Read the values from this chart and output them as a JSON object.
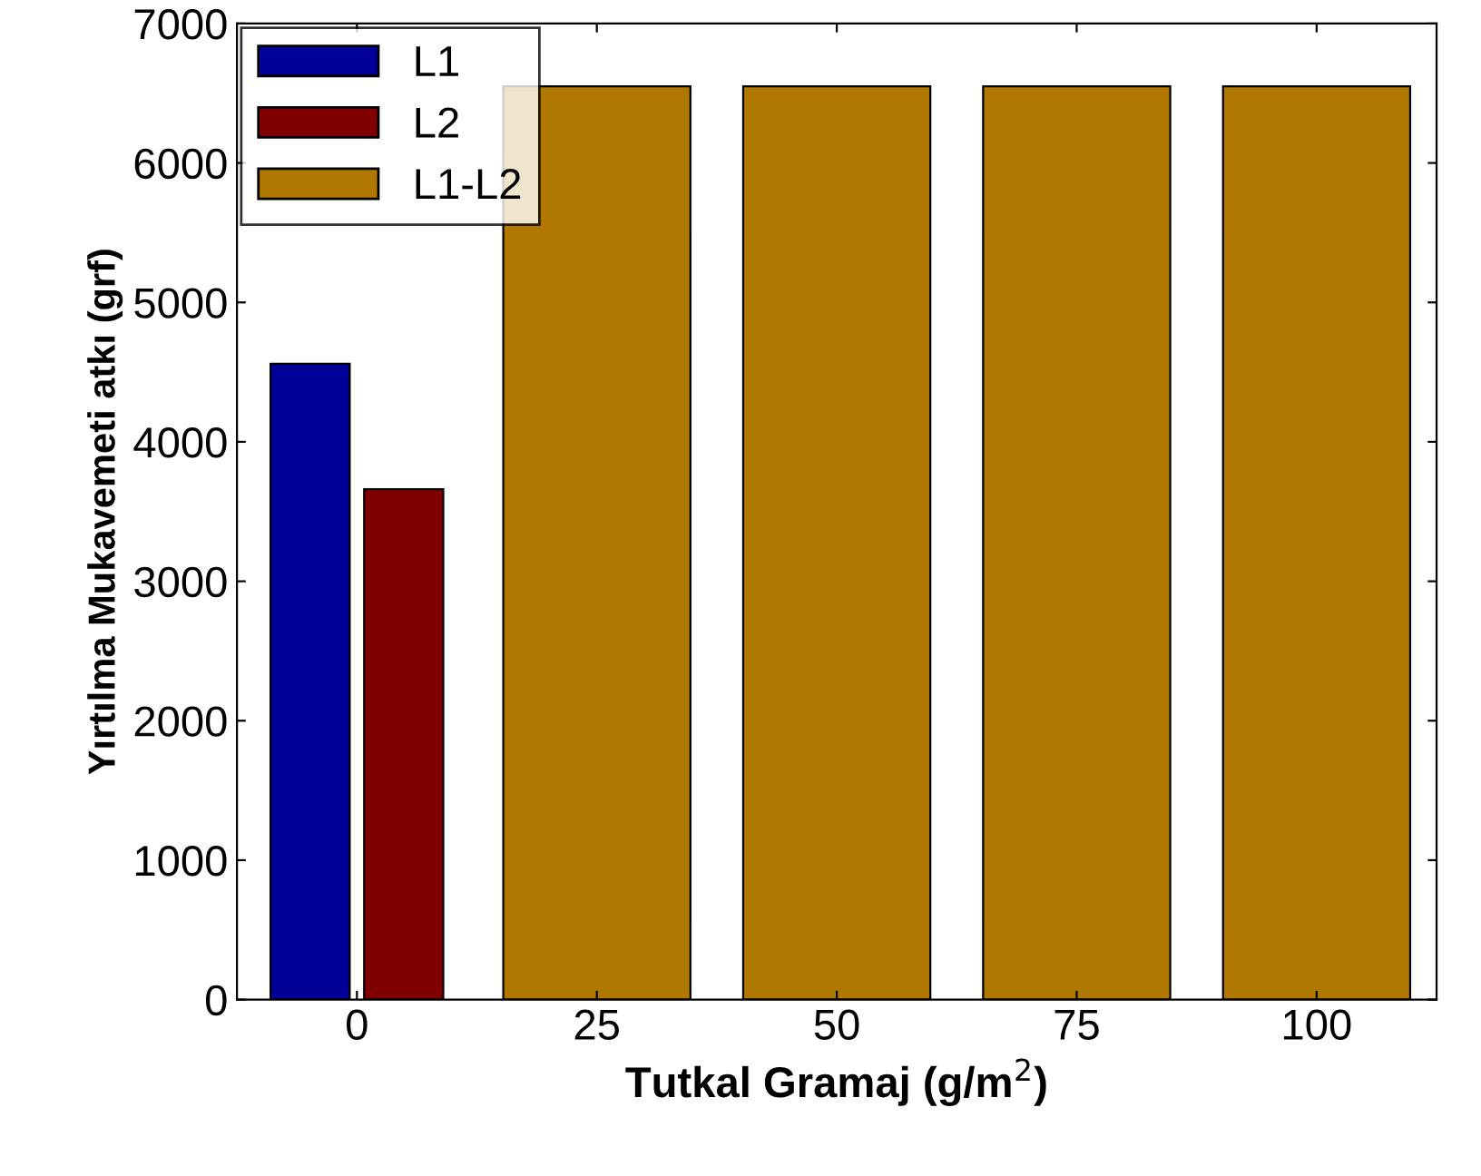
{
  "chart_data": {
    "type": "bar",
    "xlabel": "Tutkal Gramaj (g/m$^{2}$)",
    "ylabel": "Yırtılma Mukavemeti atkı (grf)",
    "categories": [
      "0",
      "25",
      "50",
      "75",
      "100"
    ],
    "series": [
      {
        "name": "L1",
        "color": "#000099",
        "values": [
          4560,
          null,
          null,
          null,
          null
        ]
      },
      {
        "name": "L2",
        "color": "#800000",
        "values": [
          3660,
          null,
          null,
          null,
          null
        ]
      },
      {
        "name": "L1-L2",
        "color": "#b07800",
        "values": [
          null,
          6550,
          6550,
          6550,
          6550
        ]
      }
    ],
    "ylim": [
      0,
      7000
    ],
    "yticks": [
      0,
      1000,
      2000,
      3000,
      4000,
      5000,
      6000,
      7000
    ],
    "grid": false,
    "legend": "top left"
  }
}
